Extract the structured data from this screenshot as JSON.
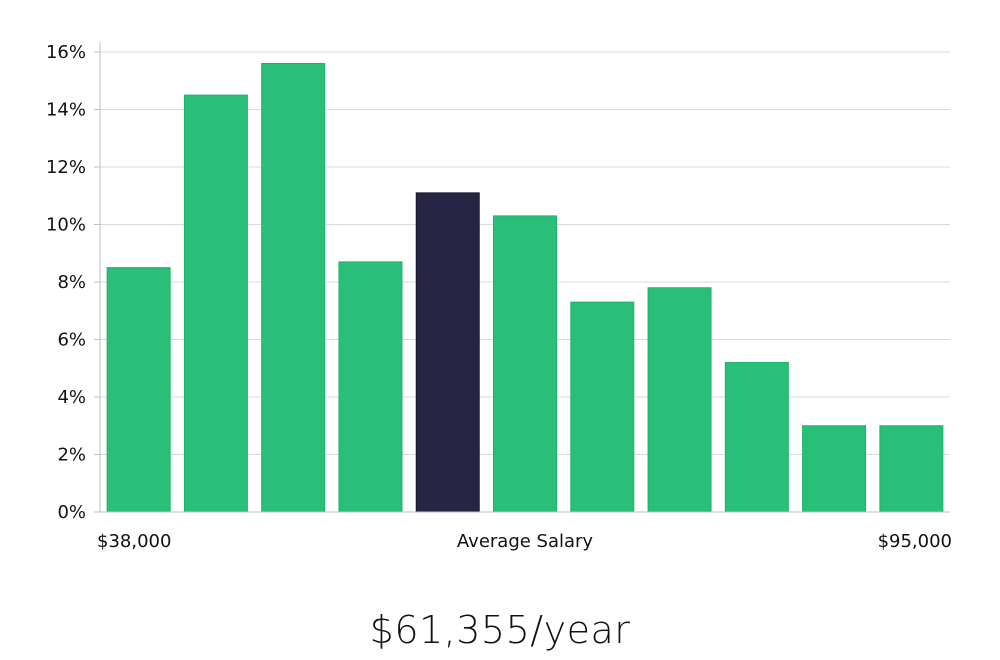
{
  "colors": {
    "bar": "#2abf78",
    "bar_highlight": "#272544",
    "grid": "#d9d9d9",
    "axis": "#bfbfbf"
  },
  "chart_data": {
    "type": "bar",
    "title": "",
    "ylabel": "",
    "ylim": [
      0,
      16
    ],
    "yticks": [
      0,
      2,
      4,
      6,
      8,
      10,
      12,
      14,
      16
    ],
    "ytick_labels": [
      "0%",
      "2%",
      "4%",
      "6%",
      "8%",
      "10%",
      "12%",
      "14%",
      "16%"
    ],
    "values": [
      8.5,
      14.5,
      15.6,
      8.7,
      11.1,
      10.3,
      7.3,
      7.8,
      5.2,
      3.0,
      3.0
    ],
    "highlight_index": 4,
    "x_min_label": "$38,000",
    "x_center_label": "Average Salary",
    "x_max_label": "$95,000",
    "grid": true
  },
  "summary": {
    "salary": "$61,355/year"
  }
}
